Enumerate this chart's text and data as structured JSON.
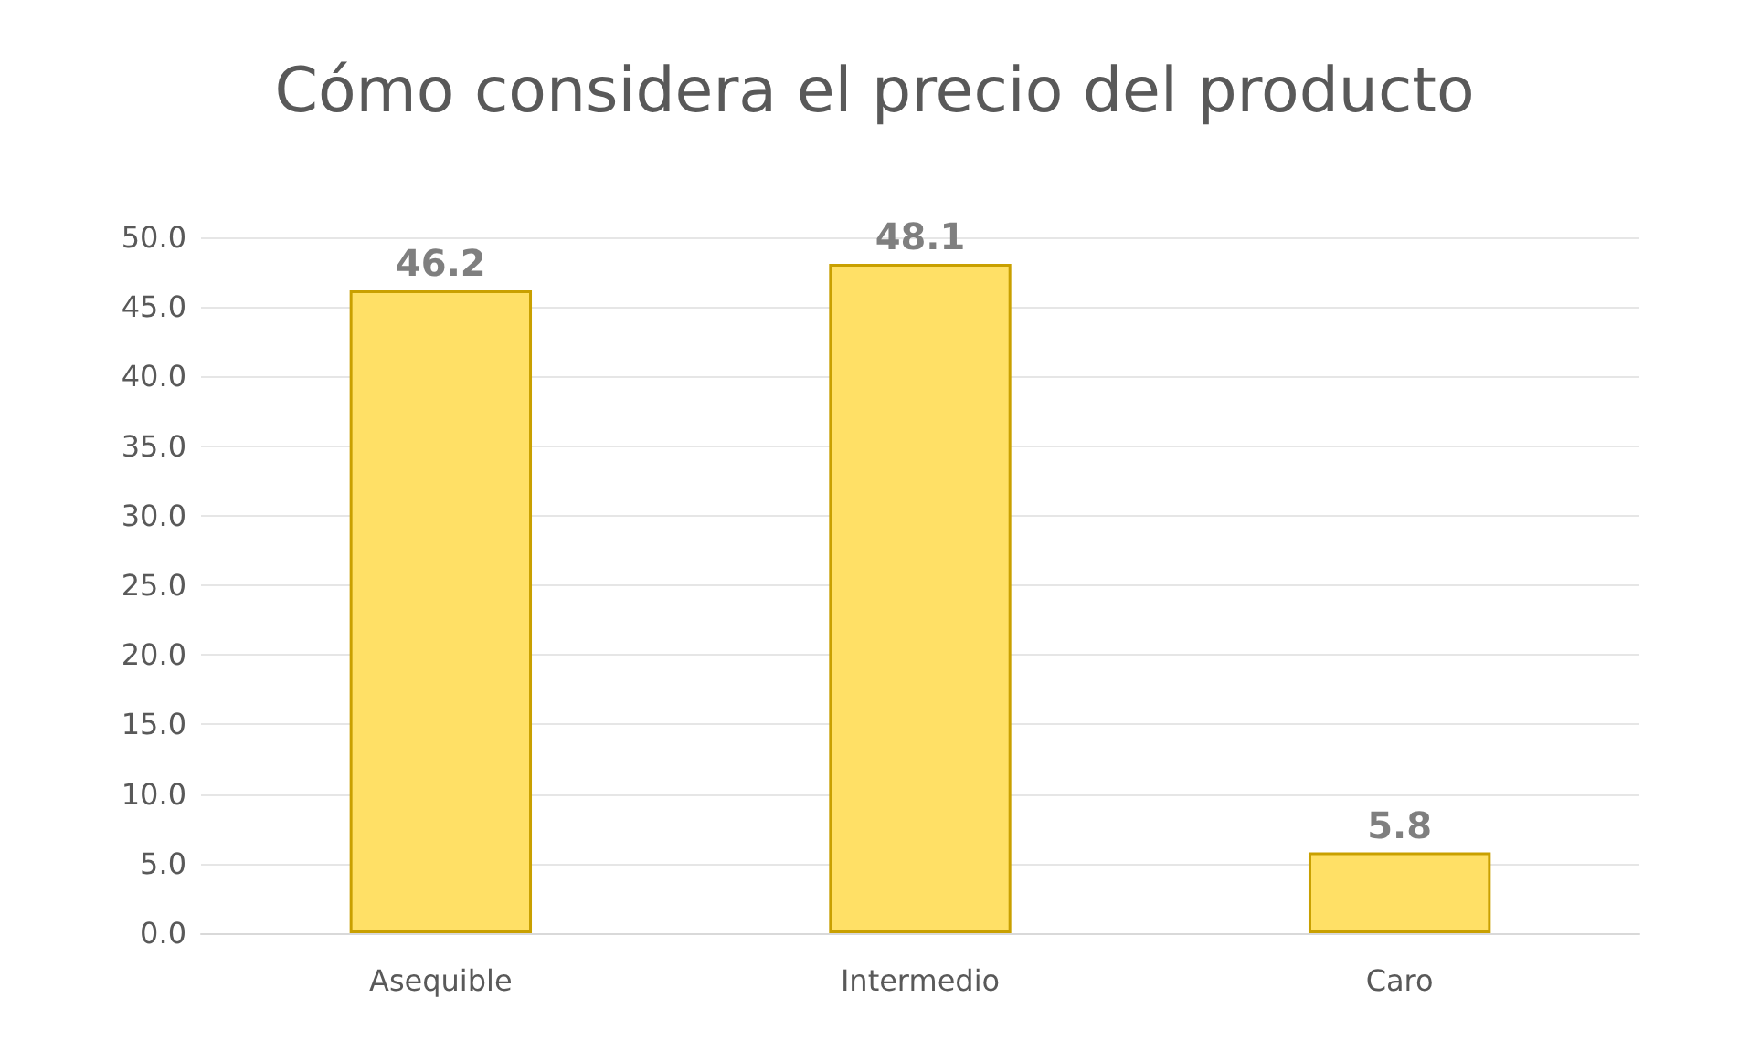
{
  "chart_data": {
    "type": "bar",
    "title": "Cómo considera el precio del producto",
    "categories": [
      "Asequible",
      "Intermedio",
      "Caro"
    ],
    "values": [
      46.2,
      48.1,
      5.8
    ],
    "color": "#ffe066",
    "ylim": [
      0,
      50
    ],
    "yticks": [
      {
        "value": 0,
        "label": "0.0"
      },
      {
        "value": 5,
        "label": "5.0"
      },
      {
        "value": 10,
        "label": "10.0"
      },
      {
        "value": 15,
        "label": "15.0"
      },
      {
        "value": 20,
        "label": "20.0"
      },
      {
        "value": 25,
        "label": "25.0"
      },
      {
        "value": 30,
        "label": "30.0"
      },
      {
        "value": 35,
        "label": "35.0"
      },
      {
        "value": 40,
        "label": "40.0"
      },
      {
        "value": 45,
        "label": "45.0"
      },
      {
        "value": 50,
        "label": "50.0"
      }
    ],
    "grid": true,
    "data_labels": true
  }
}
